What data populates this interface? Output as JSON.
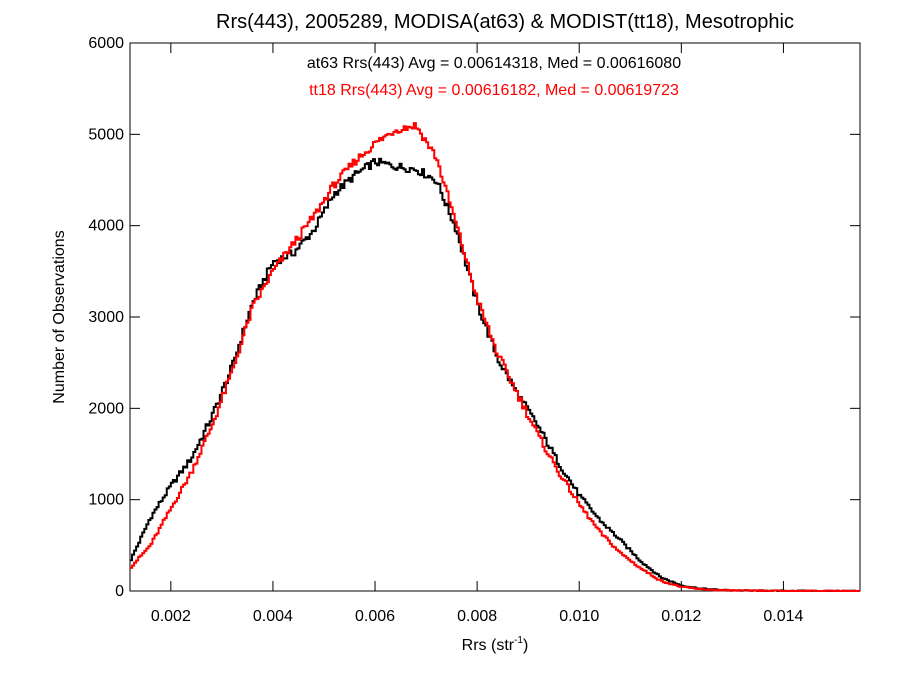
{
  "chart_data": {
    "type": "line",
    "title": "Rrs(443), 2005289, MODISA(at63) & MODIST(tt18), Mesotrophic",
    "xlabel_main": "Rrs (str",
    "xlabel_sup": "-1",
    "xlabel_close": ")",
    "ylabel": "Number of Observations",
    "xlim": [
      0.0012,
      0.0155
    ],
    "ylim": [
      0,
      6000
    ],
    "x_ticks": [
      0.002,
      0.004,
      0.006,
      0.008,
      0.01,
      0.012,
      0.014
    ],
    "x_tick_labels": [
      "0.002",
      "0.004",
      "0.006",
      "0.008",
      "0.010",
      "0.012",
      "0.014"
    ],
    "y_ticks": [
      0,
      1000,
      2000,
      3000,
      4000,
      5000,
      6000
    ],
    "y_tick_labels": [
      "0",
      "1000",
      "2000",
      "3000",
      "4000",
      "5000",
      "6000"
    ],
    "grid": false,
    "step": "histogram",
    "annotations": [
      {
        "text": "at63 Rrs(443) Avg = 0.00614318, Med = 0.00616080",
        "color": "#000000"
      },
      {
        "text": "tt18 Rrs(443) Avg = 0.00616182, Med = 0.00619723",
        "color": "#ff0000"
      }
    ],
    "series": [
      {
        "color": "#000000",
        "x": [
          0.0012,
          0.0016,
          0.002,
          0.0024,
          0.0028,
          0.0032,
          0.0036,
          0.004,
          0.0044,
          0.0048,
          0.0052,
          0.0056,
          0.006,
          0.0064,
          0.0068,
          0.0072,
          0.0076,
          0.008,
          0.0084,
          0.0088,
          0.0092,
          0.0096,
          0.01,
          0.0104,
          0.0108,
          0.0112,
          0.0116,
          0.012,
          0.0124,
          0.0128,
          0.0132,
          0.0136,
          0.014,
          0.0145,
          0.015,
          0.0155
        ],
        "values": [
          320,
          800,
          1150,
          1450,
          1900,
          2450,
          3150,
          3600,
          3700,
          3950,
          4350,
          4550,
          4700,
          4650,
          4620,
          4500,
          3950,
          3150,
          2550,
          2150,
          1800,
          1400,
          1050,
          780,
          560,
          330,
          150,
          60,
          25,
          10,
          5,
          3,
          2,
          1,
          1,
          0
        ]
      },
      {
        "color": "#ff0000",
        "x": [
          0.0012,
          0.0016,
          0.002,
          0.0024,
          0.0028,
          0.0032,
          0.0036,
          0.004,
          0.0044,
          0.0048,
          0.0052,
          0.0056,
          0.006,
          0.0064,
          0.0068,
          0.0072,
          0.0076,
          0.008,
          0.0084,
          0.0088,
          0.0092,
          0.0096,
          0.01,
          0.0104,
          0.0108,
          0.0112,
          0.0116,
          0.012,
          0.0124,
          0.0128,
          0.0132,
          0.0136,
          0.014,
          0.0145,
          0.015,
          0.0155
        ],
        "values": [
          250,
          500,
          900,
          1300,
          1800,
          2400,
          3100,
          3500,
          3800,
          4100,
          4450,
          4700,
          4900,
          5050,
          5100,
          4750,
          4000,
          3200,
          2600,
          2150,
          1700,
          1300,
          950,
          650,
          420,
          250,
          110,
          45,
          18,
          8,
          4,
          2,
          1,
          1,
          1,
          0
        ]
      }
    ]
  }
}
